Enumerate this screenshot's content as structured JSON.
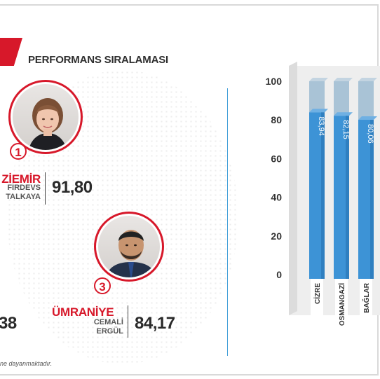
{
  "header": {
    "title": "PERFORMANS SIRALAMASI"
  },
  "rank1": {
    "rank": "1",
    "city": "ZİEMİR",
    "person_line1": "FİRDEVS",
    "person_line2": "TALKAYA",
    "score": "91,80"
  },
  "rank3": {
    "rank": "3",
    "city": "ÜMRANİYE",
    "person_line1": "CEMALİ",
    "person_line2": "ERGÜL",
    "score": "84,17"
  },
  "partial_score": {
    "text": "38"
  },
  "footnote": "ne dayanmaktadır.",
  "colors": {
    "accent_red": "#d7182a",
    "bar_blue": "#3d93d6",
    "bar_top": "#a9c3d6",
    "divider_blue": "#44a0d8"
  },
  "icons": [
    "portrait-avatar-1",
    "portrait-avatar-3"
  ],
  "chart_data": {
    "type": "bar",
    "categories": [
      "CİZRE",
      "OSMANGAZİ",
      "BAĞLAR"
    ],
    "values": [
      83.94,
      82.15,
      80.06
    ],
    "value_labels": [
      "83,94",
      "82,15",
      "80,06"
    ],
    "ylim": [
      0,
      100
    ],
    "yticks": [
      0,
      20,
      40,
      60,
      80,
      100
    ],
    "grid": false,
    "title": "",
    "xlabel": "",
    "ylabel": ""
  }
}
